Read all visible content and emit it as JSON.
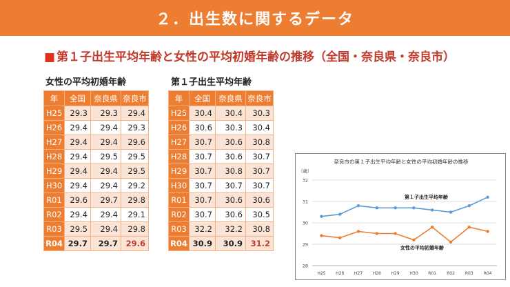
{
  "header": {
    "title": "２．出生数に関するデータ"
  },
  "subtitle": {
    "marker": "■",
    "text": "第１子出生平均年齢と女性の平均初婚年齢の推移（全国・奈良県・奈良市）"
  },
  "table_marriage": {
    "caption": "女性の平均初婚年齢",
    "headers": [
      "年",
      "全国",
      "奈良県",
      "奈良市"
    ],
    "rows": [
      [
        "H25",
        "29.3",
        "29.3",
        "29.4"
      ],
      [
        "H26",
        "29.4",
        "29.4",
        "29.3"
      ],
      [
        "H27",
        "29.4",
        "29.4",
        "29.6"
      ],
      [
        "H28",
        "29.4",
        "29.5",
        "29.5"
      ],
      [
        "H29",
        "29.4",
        "29.4",
        "29.5"
      ],
      [
        "H30",
        "29.4",
        "29.4",
        "29.2"
      ],
      [
        "R01",
        "29.6",
        "29.7",
        "29.8"
      ],
      [
        "R02",
        "29.4",
        "29.4",
        "29.1"
      ],
      [
        "R03",
        "29.5",
        "29.4",
        "29.8"
      ],
      [
        "R04",
        "29.7",
        "29.7",
        "29.6"
      ]
    ]
  },
  "table_firstbirth": {
    "caption": "第１子出生平均年齢",
    "headers": [
      "年",
      "全国",
      "奈良県",
      "奈良市"
    ],
    "rows": [
      [
        "H25",
        "30.4",
        "30.4",
        "30.3"
      ],
      [
        "H26",
        "30.6",
        "30.3",
        "30.4"
      ],
      [
        "H27",
        "30.7",
        "30.6",
        "30.8"
      ],
      [
        "H28",
        "30.7",
        "30.6",
        "30.7"
      ],
      [
        "H29",
        "30.7",
        "30.8",
        "30.7"
      ],
      [
        "H30",
        "30.7",
        "30.7",
        "30.7"
      ],
      [
        "R01",
        "30.7",
        "30.6",
        "30.6"
      ],
      [
        "R02",
        "30.7",
        "30.6",
        "30.5"
      ],
      [
        "R03",
        "32.2",
        "32.2",
        "30.8"
      ],
      [
        "R04",
        "30.9",
        "30.9",
        "31.2"
      ]
    ]
  },
  "colors": {
    "banner": "#ed7d31",
    "accent_red": "#c0392b",
    "row_tint": "#fbe4d5",
    "series_birth": "#5b9bd5",
    "series_marriage": "#ed7d31"
  },
  "chart_data": {
    "type": "line",
    "title": "奈良市の第１子出生平均年齢と女性の平均初婚年齢の推移",
    "ylabel": "（歳）",
    "xlabel": "",
    "ylim": [
      28,
      32
    ],
    "yticks": [
      "28",
      "29",
      "30",
      "31",
      "32"
    ],
    "grid": true,
    "categories": [
      "H25",
      "H26",
      "H27",
      "H28",
      "H29",
      "H30",
      "R01",
      "R02",
      "R03",
      "R04"
    ],
    "series": [
      {
        "name": "第１子出生平均年齢",
        "color": "#5b9bd5",
        "values": [
          30.3,
          30.4,
          30.8,
          30.7,
          30.7,
          30.7,
          30.6,
          30.5,
          30.8,
          31.2
        ]
      },
      {
        "name": "女性の平均初婚年齢",
        "color": "#ed7d31",
        "values": [
          29.4,
          29.3,
          29.6,
          29.5,
          29.5,
          29.2,
          29.8,
          29.1,
          29.8,
          29.6
        ]
      }
    ]
  }
}
